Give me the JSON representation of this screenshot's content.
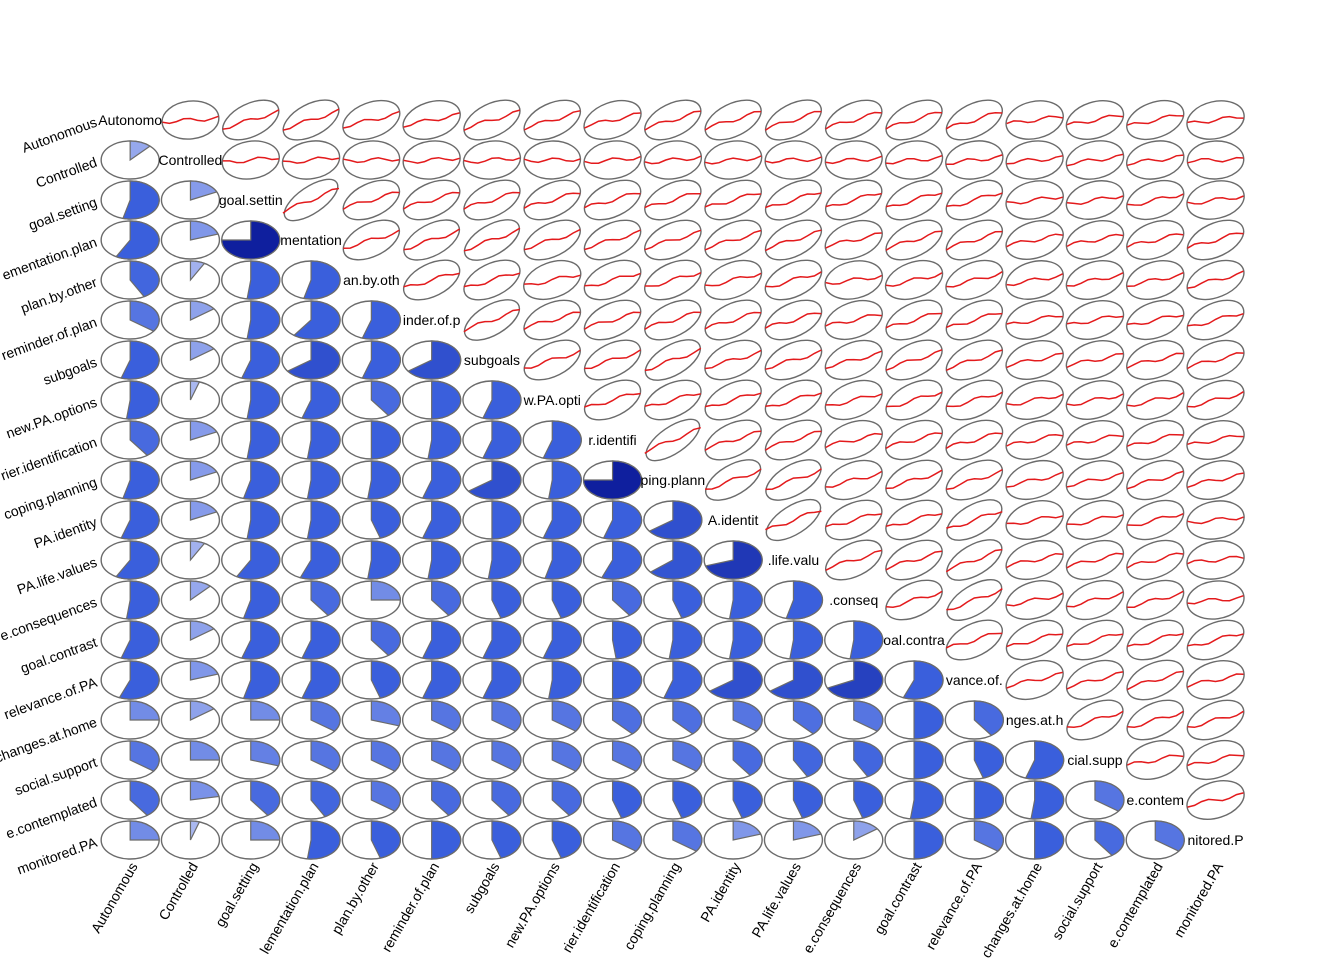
{
  "chart_data": {
    "type": "corrgram",
    "title": "",
    "lower_panel": "pie",
    "upper_panel": "ellipse",
    "variables": [
      {
        "label": "Autonomous",
        "diag_text": "Autonomo"
      },
      {
        "label": "Controlled",
        "diag_text": "Controlled"
      },
      {
        "label": "goal.setting",
        "diag_text": "goal.settin"
      },
      {
        "label": "implementation.plan",
        "diag_text": "mentation"
      },
      {
        "label": "plan.by.other",
        "diag_text": "an.by.oth"
      },
      {
        "label": "reminder.of.plan",
        "diag_text": "inder.of.p"
      },
      {
        "label": "subgoals",
        "diag_text": "subgoals"
      },
      {
        "label": "new.PA.options",
        "diag_text": "w.PA.opti"
      },
      {
        "label": "barrier.identification",
        "diag_text": "r.identifi"
      },
      {
        "label": "coping.planning",
        "diag_text": "ping.plann"
      },
      {
        "label": "PA.identity",
        "diag_text": "A.identit"
      },
      {
        "label": "PA.life.values",
        "diag_text": ".life.valu"
      },
      {
        "label": "positive.consequences",
        "diag_text": ".conseq"
      },
      {
        "label": "goal.contrast",
        "diag_text": "oal.contra"
      },
      {
        "label": "relevance.of.PA",
        "diag_text": "vance.of."
      },
      {
        "label": "changes.at.home",
        "diag_text": "nges.at.h"
      },
      {
        "label": "social.support",
        "diag_text": "cial.supp"
      },
      {
        "label": "change.contemplated",
        "diag_text": "e.contem"
      },
      {
        "label": "monitored.PA",
        "diag_text": "nitored.P"
      }
    ],
    "x_tick_labels": [
      "Autonomous",
      "Controlled",
      "goal.setting",
      "lementation.plan",
      "plan.by.other",
      "reminder.of.plan",
      "subgoals",
      "new.PA.options",
      "rier.identification",
      "coping.planning",
      "PA.identity",
      "PA.life.values",
      "e.consequences",
      "goal.contrast",
      "relevance.of.PA",
      "changes.at.home",
      "social.support",
      "e.contemplated",
      "monitored.PA"
    ],
    "y_tick_labels": [
      "Autonomous",
      "Controlled",
      "goal.setting",
      "ementation.plan",
      "plan.by.other",
      "reminder.of.plan",
      "subgoals",
      "new.PA.options",
      "rier.identification",
      "coping.planning",
      "PA.identity",
      "PA.life.values",
      "e.consequences",
      "goal.contrast",
      "relevance.of.PA",
      "changes.at.home",
      "social.support",
      "e.contemplated",
      "monitored.PA"
    ],
    "correlations_lower": [
      [],
      [
        0.12
      ],
      [
        0.54,
        0.18
      ],
      [
        0.58,
        0.2,
        0.75
      ],
      [
        0.42,
        0.08,
        0.52,
        0.54
      ],
      [
        0.35,
        0.15,
        0.52,
        0.6,
        0.55
      ],
      [
        0.55,
        0.15,
        0.55,
        0.65,
        0.55,
        0.65
      ],
      [
        0.52,
        0.05,
        0.52,
        0.55,
        0.4,
        0.5,
        0.55
      ],
      [
        0.4,
        0.18,
        0.52,
        0.52,
        0.5,
        0.52,
        0.55,
        0.55
      ],
      [
        0.54,
        0.18,
        0.54,
        0.52,
        0.52,
        0.55,
        0.65,
        0.52,
        0.75
      ],
      [
        0.55,
        0.18,
        0.52,
        0.52,
        0.45,
        0.55,
        0.5,
        0.55,
        0.55,
        0.65
      ],
      [
        0.58,
        0.08,
        0.58,
        0.56,
        0.52,
        0.52,
        0.52,
        0.54,
        0.56,
        0.64,
        0.7
      ],
      [
        0.52,
        0.12,
        0.54,
        0.4,
        0.25,
        0.4,
        0.45,
        0.45,
        0.4,
        0.45,
        0.52,
        0.54
      ],
      [
        0.55,
        0.15,
        0.55,
        0.55,
        0.4,
        0.55,
        0.55,
        0.55,
        0.48,
        0.52,
        0.52,
        0.52,
        0.52
      ],
      [
        0.56,
        0.2,
        0.54,
        0.55,
        0.45,
        0.55,
        0.55,
        0.52,
        0.5,
        0.55,
        0.65,
        0.65,
        0.68,
        0.56
      ],
      [
        0.25,
        0.15,
        0.25,
        0.35,
        0.3,
        0.35,
        0.35,
        0.35,
        0.38,
        0.38,
        0.35,
        0.38,
        0.35,
        0.5,
        0.4
      ],
      [
        0.35,
        0.25,
        0.3,
        0.35,
        0.35,
        0.35,
        0.35,
        0.35,
        0.35,
        0.35,
        0.4,
        0.42,
        0.42,
        0.5,
        0.45,
        0.55
      ],
      [
        0.4,
        0.22,
        0.4,
        0.42,
        0.35,
        0.4,
        0.4,
        0.4,
        0.45,
        0.45,
        0.45,
        0.45,
        0.45,
        0.52,
        0.5,
        0.52,
        0.35
      ],
      [
        0.25,
        0.05,
        0.25,
        0.52,
        0.45,
        0.5,
        0.45,
        0.45,
        0.35,
        0.35,
        0.2,
        0.2,
        0.15,
        0.5,
        0.35,
        0.5,
        0.4,
        0.35
      ]
    ],
    "colors": {
      "pie_positive_strong": "#0f1f9e",
      "pie_positive_mid": "#3a5fdc",
      "pie_positive_light": "#aab8f0",
      "pie_outline": "#6b6b6b",
      "ellipse_outline": "#6b6b6b",
      "smooth_line": "#e31a1c"
    }
  }
}
